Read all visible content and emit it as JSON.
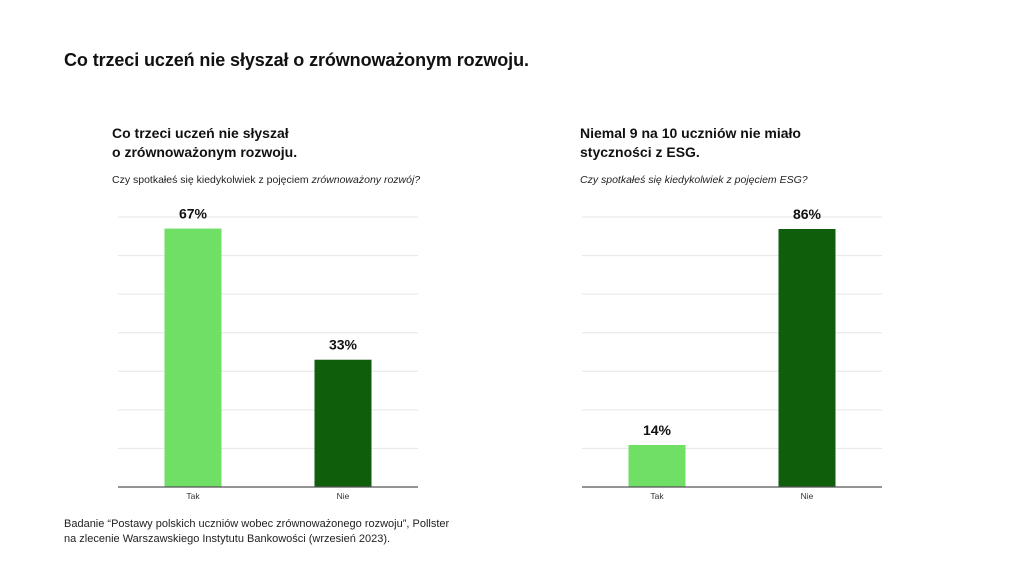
{
  "page": {
    "title": "Co trzeci uczeń nie słyszał o zrównoważonym rozwoju."
  },
  "source": {
    "line1": "Badanie “Postawy polskich uczniów wobec zrównoważonego rozwoju”, Pollster",
    "line2": "na zlecenie Warszawskiego Instytutu Bankowości (wrzesień 2023)."
  },
  "colors": {
    "light_green": "#6fdf66",
    "dark_green": "#0f5e0b",
    "grid": "#e6e6e6",
    "axis": "#555555"
  },
  "chart_data": [
    {
      "type": "bar",
      "title": "Co trzeci uczeń nie słyszał\no zrównoważonym rozwoju.",
      "question_plain": "Czy spotkałeś się kiedykolwiek z pojęciem ",
      "question_italic": "zrównoważony rozwój?",
      "categories": [
        "Tak",
        "Nie"
      ],
      "values": [
        67,
        33
      ],
      "value_labels": [
        "67%",
        "33%"
      ],
      "bar_colors": [
        "#6fdf66",
        "#0f5e0b"
      ],
      "ylim": [
        0,
        70
      ],
      "grid": true,
      "xlabel": "",
      "ylabel": ""
    },
    {
      "type": "bar",
      "title": "Niemal 9 na 10 uczniów nie miało\nstyczności z ESG.",
      "question_plain": "",
      "question_italic": "Czy spotkałeś się kiedykolwiek z pojęciem ESG?",
      "categories": [
        "Tak",
        "Nie"
      ],
      "values": [
        14,
        86
      ],
      "value_labels": [
        "14%",
        "86%"
      ],
      "bar_colors": [
        "#6fdf66",
        "#0f5e0b"
      ],
      "ylim": [
        0,
        90
      ],
      "grid": true,
      "xlabel": "",
      "ylabel": ""
    }
  ]
}
